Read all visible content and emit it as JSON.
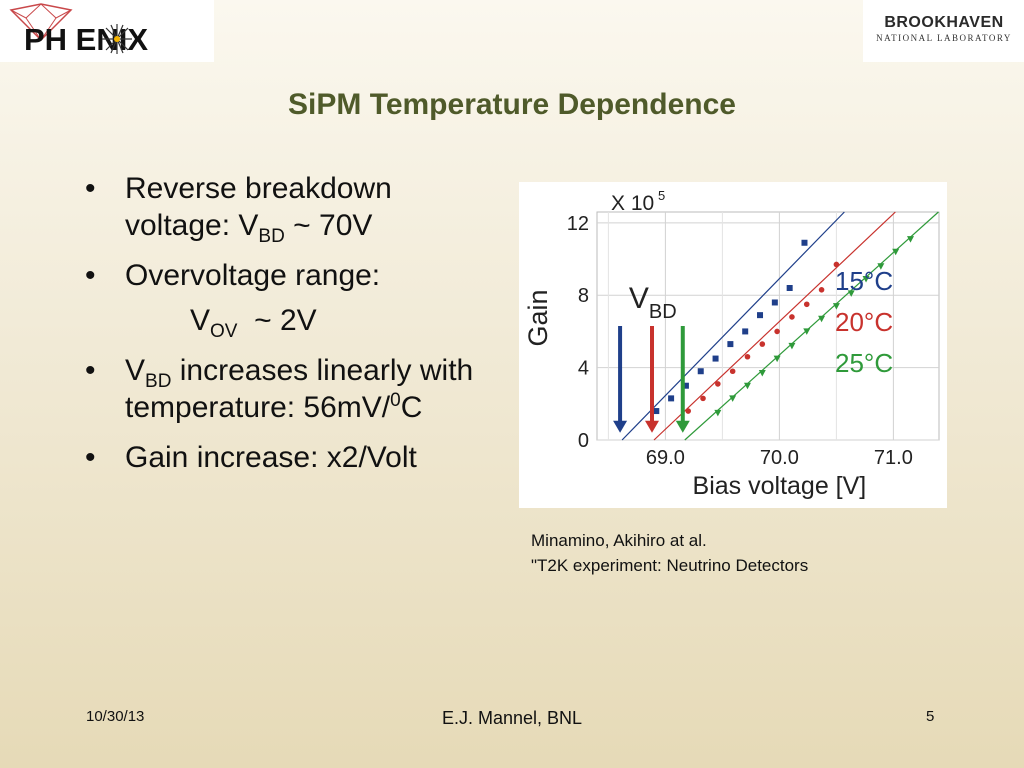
{
  "logos": {
    "left_text": "PH ENIX",
    "right_brand": "BROOKHAVEN",
    "right_sub": "NATIONAL LABORATORY"
  },
  "slide": {
    "title": "SiPM Temperature Dependence",
    "bullets": {
      "b1_text": "Reverse breakdown voltage: V",
      "b1_sub": "BD",
      "b1_tail": " ~ 70V",
      "b2_text": "Overvoltage range:",
      "b2_indent_main": "V",
      "b2_indent_sub": "OV",
      "b2_indent_tail": "  ~ 2V",
      "b3_main": "V",
      "b3_sub": "BD",
      "b3_text": " increases linearly with temperature: 56mV/",
      "b3_sup": "0",
      "b3_tail": "C",
      "b4_text": "Gain increase: x2/Volt"
    },
    "caption_line1": "Minamino, Akihiro at al.",
    "caption_line2": "\"T2K experiment: Neutrino Detectors",
    "footer": {
      "date": "10/30/13",
      "author": "E.J. Mannel, BNL",
      "page": "5"
    }
  },
  "chart_data": {
    "type": "scatter",
    "xlabel": "Bias voltage [V]",
    "ylabel": "Gain",
    "y_multiplier": "X 10",
    "y_multiplier_exp": "5",
    "xlim": [
      68.4,
      71.4
    ],
    "ylim": [
      0,
      12.6
    ],
    "xticks": [
      "69.0",
      "70.0",
      "71.0"
    ],
    "xtick_values": [
      69.0,
      70.0,
      71.0
    ],
    "yticks": [
      "0",
      "4",
      "8",
      "12"
    ],
    "ytick_values": [
      0,
      4,
      8,
      12
    ],
    "vbd_label": "V",
    "vbd_sub": "BD",
    "series": [
      {
        "name": "15°C",
        "color": "#1f3f8a",
        "marker": "square",
        "vbd": 68.62,
        "x": [
          68.92,
          69.05,
          69.18,
          69.31,
          69.44,
          69.57,
          69.7,
          69.83,
          69.96,
          70.09,
          70.22
        ],
        "y": [
          1.6,
          2.3,
          3.0,
          3.8,
          4.5,
          5.3,
          6.0,
          6.9,
          7.6,
          8.4,
          10.9
        ]
      },
      {
        "name": "20°C",
        "color": "#c8322d",
        "marker": "circle",
        "vbd": 68.9,
        "x": [
          69.2,
          69.33,
          69.46,
          69.59,
          69.72,
          69.85,
          69.98,
          70.11,
          70.24,
          70.37,
          70.5
        ],
        "y": [
          1.6,
          2.3,
          3.1,
          3.8,
          4.6,
          5.3,
          6.0,
          6.8,
          7.5,
          8.3,
          9.7
        ]
      },
      {
        "name": "25°C",
        "color": "#2f9a3a",
        "marker": "triangle",
        "vbd": 69.17,
        "x": [
          69.46,
          69.59,
          69.72,
          69.85,
          69.98,
          70.11,
          70.24,
          70.37,
          70.5,
          70.63,
          70.76,
          70.89,
          71.02,
          71.15
        ],
        "y": [
          1.5,
          2.3,
          3.0,
          3.7,
          4.5,
          5.2,
          6.0,
          6.7,
          7.4,
          8.1,
          8.9,
          9.6,
          10.4,
          11.1
        ]
      }
    ],
    "grid": true,
    "legend": "right"
  }
}
